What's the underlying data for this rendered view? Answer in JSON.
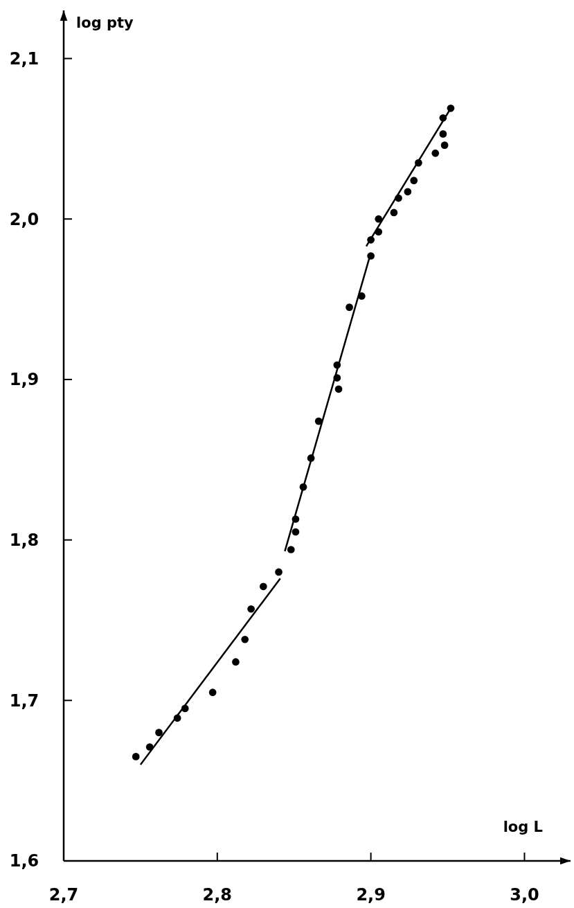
{
  "chart_data": {
    "type": "scatter",
    "xlabel": "log L",
    "ylabel": "log pty",
    "xlim": [
      2.7,
      3.03
    ],
    "ylim": [
      1.6,
      2.13
    ],
    "xticks": [
      {
        "value": 2.7,
        "label": "2,7"
      },
      {
        "value": 2.8,
        "label": "2,8"
      },
      {
        "value": 2.9,
        "label": "2,9"
      },
      {
        "value": 3.0,
        "label": "3,0"
      }
    ],
    "yticks": [
      {
        "value": 1.6,
        "label": "1,6"
      },
      {
        "value": 1.7,
        "label": "1,7"
      },
      {
        "value": 1.8,
        "label": "1,8"
      },
      {
        "value": 1.9,
        "label": "1,9"
      },
      {
        "value": 2.0,
        "label": "2,0"
      },
      {
        "value": 2.1,
        "label": "2,1"
      }
    ],
    "grid": false,
    "series": [
      {
        "marker": "circle",
        "color": "#000000",
        "x": [
          2.952,
          2.947,
          2.947,
          2.948,
          2.942,
          2.931,
          2.928,
          2.924,
          2.918,
          2.915,
          2.905,
          2.905,
          2.9,
          2.9,
          2.894,
          2.886,
          2.878,
          2.878,
          2.879,
          2.866,
          2.861,
          2.856,
          2.851,
          2.851,
          2.848,
          2.84,
          2.83,
          2.822,
          2.818,
          2.812,
          2.797,
          2.779,
          2.774,
          2.762,
          2.756,
          2.747
        ],
        "values": [
          2.069,
          2.063,
          2.053,
          2.046,
          2.041,
          2.035,
          2.024,
          2.017,
          2.013,
          2.004,
          2.0,
          1.992,
          1.987,
          1.977,
          1.952,
          1.945,
          1.909,
          1.901,
          1.894,
          1.874,
          1.851,
          1.833,
          1.813,
          1.805,
          1.794,
          1.78,
          1.771,
          1.757,
          1.738,
          1.724,
          1.705,
          1.695,
          1.689,
          1.68,
          1.671,
          1.665
        ]
      },
      {
        "type": "line",
        "color": "#000000",
        "line_style": "solid",
        "x": [
          2.897,
          2.952
        ],
        "values": [
          1.983,
          2.069
        ]
      },
      {
        "type": "line",
        "color": "#000000",
        "line_style": "solid",
        "x": [
          2.844,
          2.9
        ],
        "values": [
          1.793,
          1.979
        ]
      },
      {
        "type": "line",
        "color": "#000000",
        "line_style": "solid",
        "x": [
          2.75,
          2.841
        ],
        "values": [
          1.66,
          1.776
        ]
      }
    ]
  }
}
